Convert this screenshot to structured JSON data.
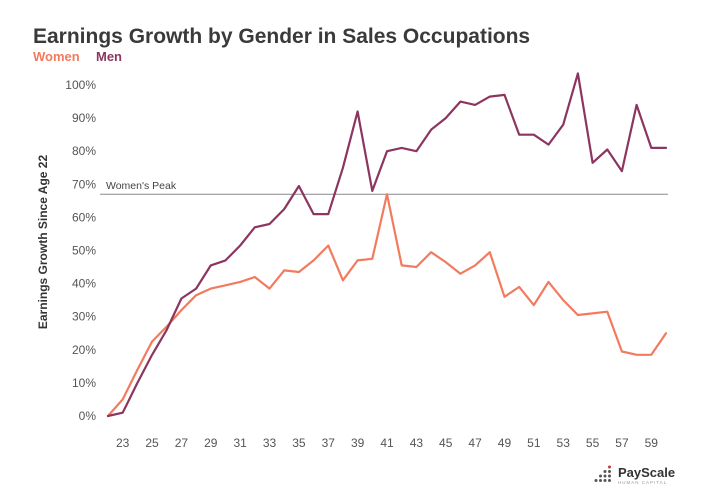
{
  "chart_data": {
    "type": "line",
    "title": "Earnings Growth by Gender in Sales Occupations",
    "ylabel": "Earnings Growth Since Age 22",
    "xlabel": "",
    "xlim": [
      22,
      60
    ],
    "ylim": [
      0,
      100
    ],
    "x_ticks": [
      23,
      25,
      27,
      29,
      31,
      33,
      35,
      37,
      39,
      41,
      43,
      45,
      47,
      49,
      51,
      53,
      55,
      57,
      59
    ],
    "y_ticks": [
      0,
      10,
      20,
      30,
      40,
      50,
      60,
      70,
      80,
      90,
      100
    ],
    "y_tick_suffix": "%",
    "legend_placement": "top-left",
    "grid": false,
    "x": [
      22,
      23,
      24,
      25,
      26,
      27,
      28,
      29,
      30,
      31,
      32,
      33,
      34,
      35,
      36,
      37,
      38,
      39,
      40,
      41,
      42,
      43,
      44,
      45,
      46,
      47,
      48,
      49,
      50,
      51,
      52,
      53,
      54,
      55,
      56,
      57,
      58,
      59,
      60
    ],
    "series": [
      {
        "name": "Women",
        "color": "#f27b5f",
        "values": [
          0,
          5,
          14,
          22.5,
          27,
          32,
          36.5,
          38.5,
          39.5,
          40.5,
          42,
          38.5,
          44,
          43.5,
          47,
          51.5,
          41,
          47,
          47.5,
          67,
          45.5,
          45,
          49.5,
          46.5,
          43,
          45.5,
          49.5,
          36,
          39,
          33.5,
          40.5,
          35,
          30.5,
          31,
          31.5,
          19.5,
          18.5,
          18.5,
          25
        ]
      },
      {
        "name": "Men",
        "color": "#8c3560",
        "values": [
          0,
          1,
          10,
          18.5,
          26,
          35.5,
          38.5,
          45.5,
          47,
          51.5,
          57,
          58,
          62.5,
          69.5,
          61,
          61,
          75,
          92,
          68,
          80,
          81,
          80,
          86.5,
          90,
          95,
          94,
          96.5,
          97,
          85,
          85,
          82,
          88,
          103.5,
          76.5,
          80.5,
          74,
          94,
          81,
          81
        ]
      }
    ],
    "annotations": [
      {
        "text": "Women's Peak",
        "y": 67
      }
    ]
  },
  "brand": {
    "name": "PayScale",
    "tagline": "HUMAN CAPITAL",
    "icon": "dot-grid-logo-icon"
  }
}
